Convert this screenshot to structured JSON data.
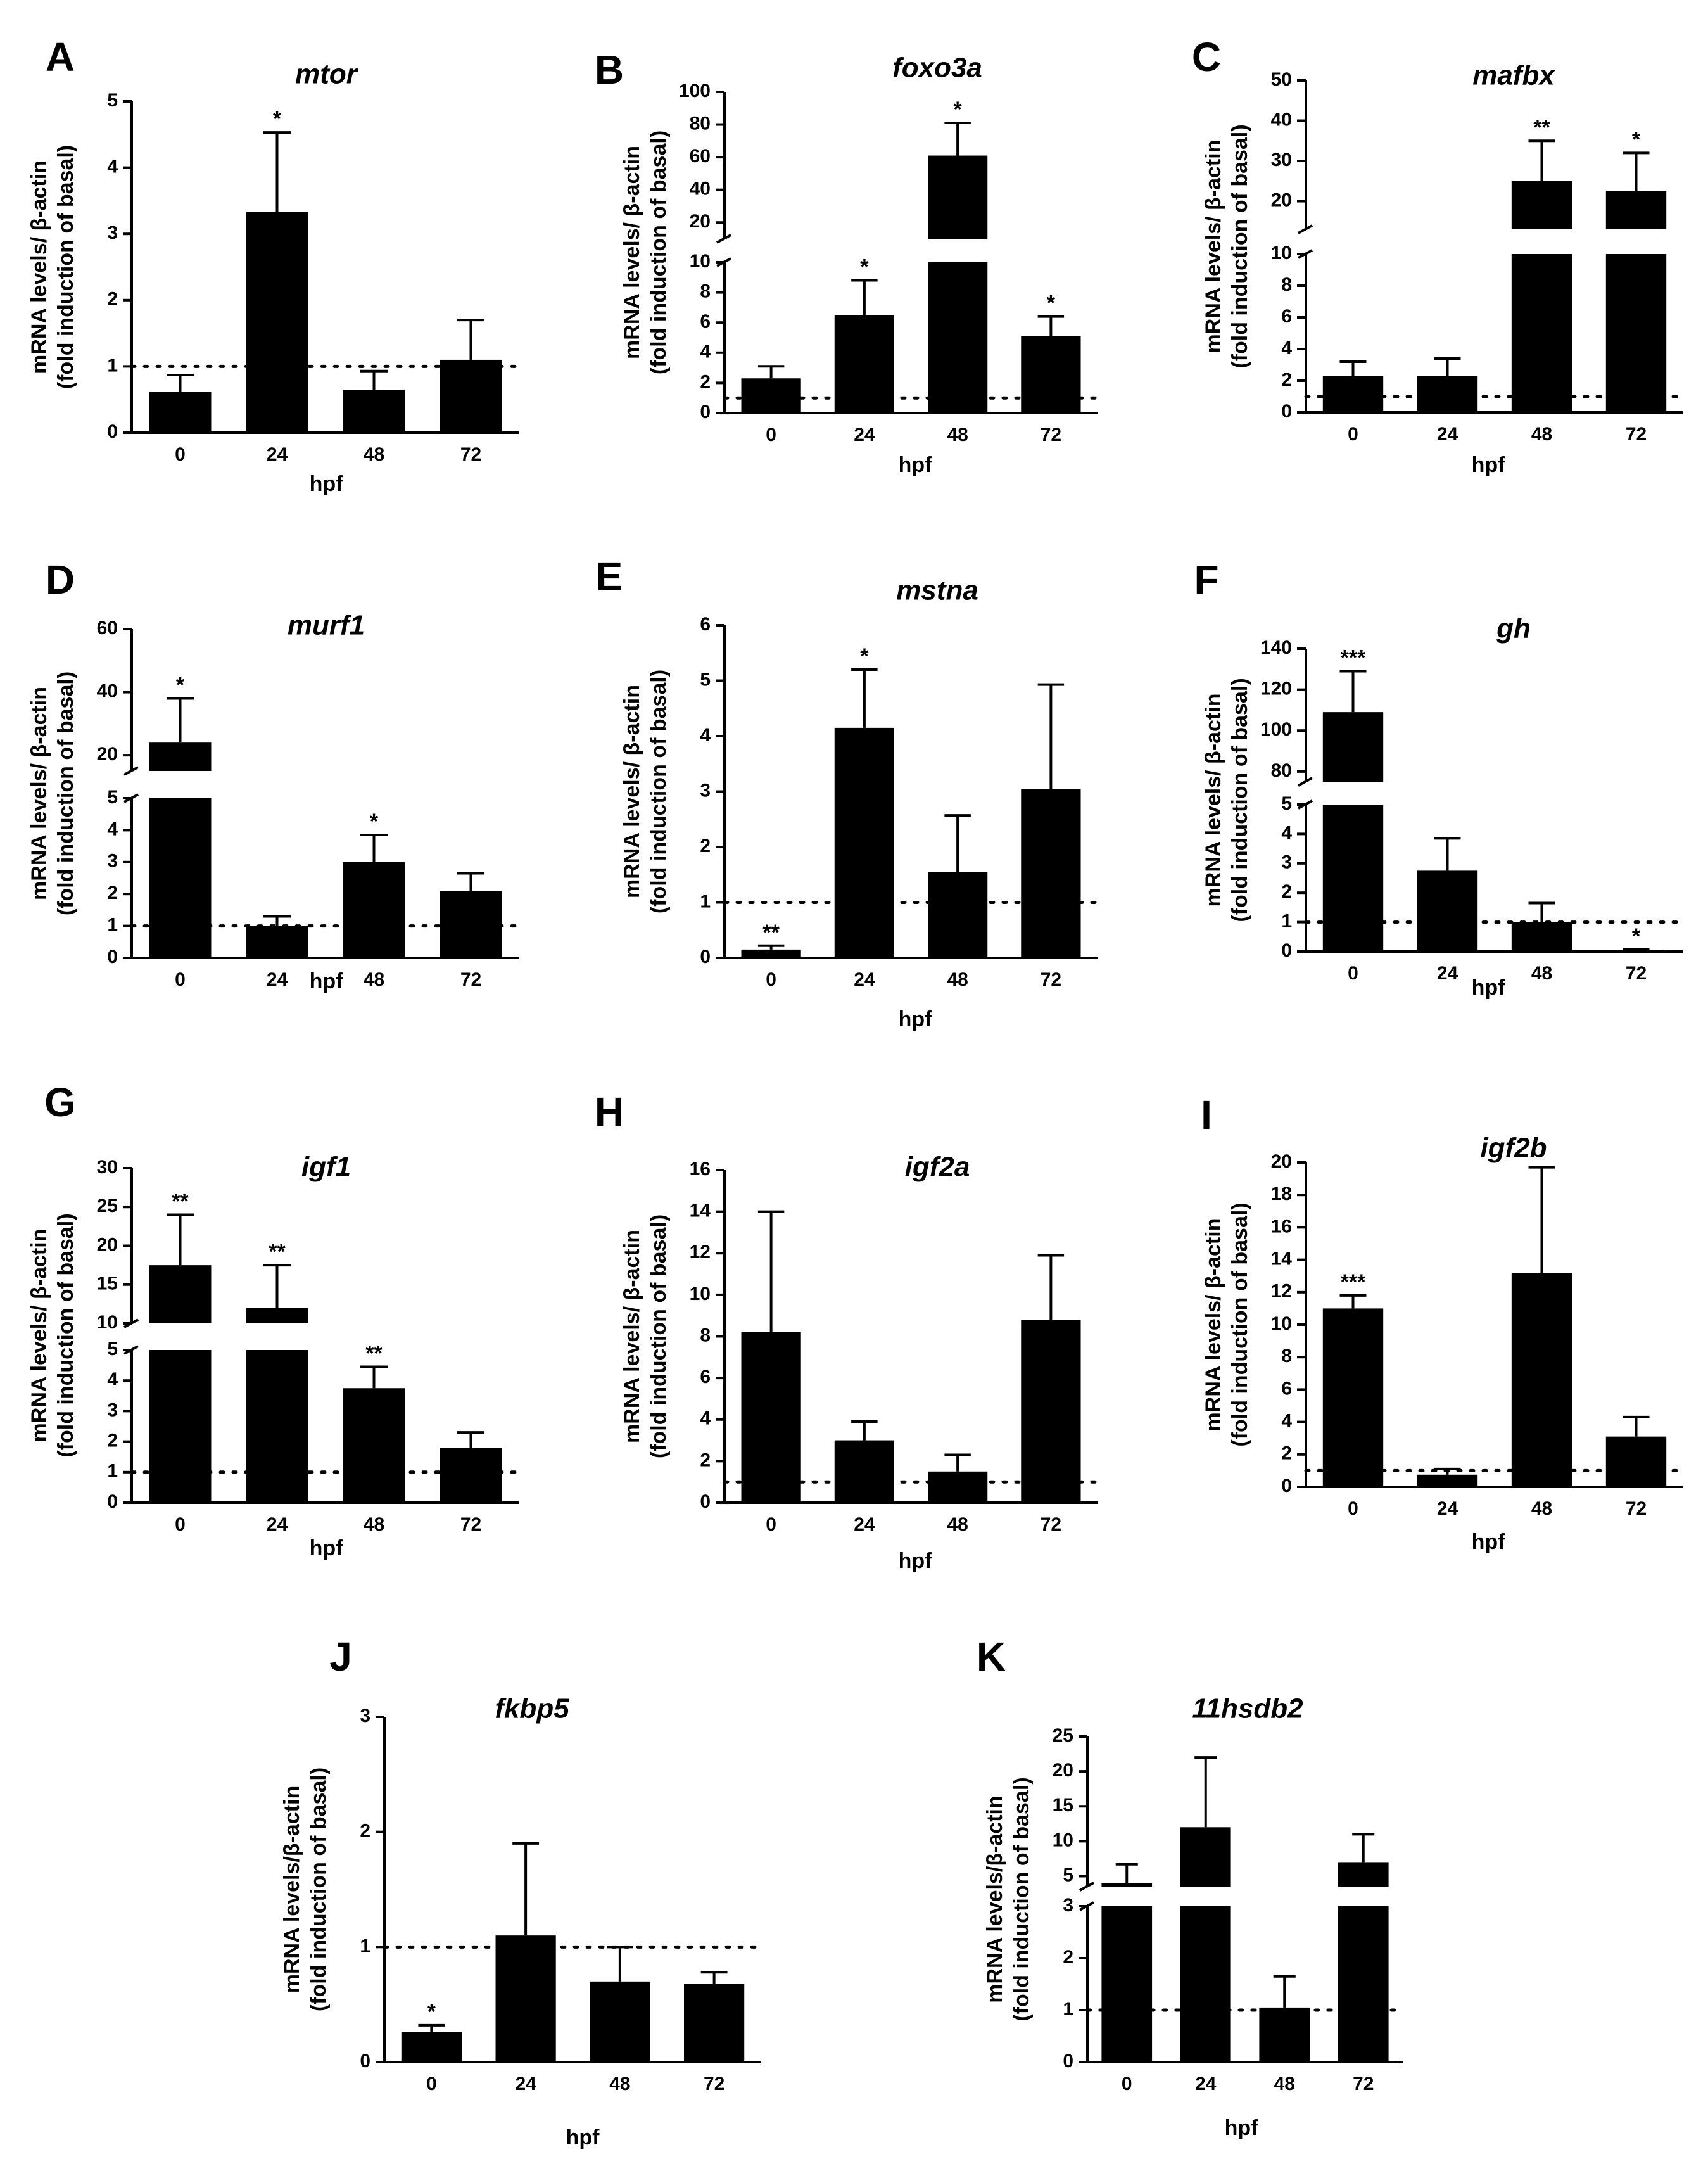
{
  "figure": {
    "panels": [
      {
        "letter": "A",
        "gene": "mtor"
      },
      {
        "letter": "B",
        "gene": "foxo3a"
      },
      {
        "letter": "C",
        "gene": "mafbx"
      },
      {
        "letter": "D",
        "gene": "murf1"
      },
      {
        "letter": "E",
        "gene": "mstna"
      },
      {
        "letter": "F",
        "gene": "gh"
      },
      {
        "letter": "G",
        "gene": "igf1"
      },
      {
        "letter": "H",
        "gene": "igf2a"
      },
      {
        "letter": "I",
        "gene": "igf2b"
      },
      {
        "letter": "J",
        "gene": "fkbp5"
      },
      {
        "letter": "K",
        "gene": "11hsdb2"
      }
    ]
  },
  "chart_data": [
    {
      "panel": "A",
      "type": "bar",
      "title": "mtor",
      "xlabel": "hpf",
      "ylabel_line1": "mRNA levels/ β-actin",
      "ylabel_line2": "(fold induction of basal)",
      "categories": [
        "0",
        "24",
        "48",
        "72"
      ],
      "values": [
        0.62,
        3.33,
        0.65,
        1.1
      ],
      "errors": [
        0.25,
        1.2,
        0.28,
        0.6
      ],
      "significance": [
        "",
        "*",
        "",
        ""
      ],
      "ylim": [
        0,
        5
      ],
      "yticks": [
        0,
        1,
        2,
        3,
        4,
        5
      ],
      "reference_line": 1
    },
    {
      "panel": "B",
      "type": "bar",
      "title": "foxo3a",
      "xlabel": "hpf",
      "ylabel_line1": "mRNA levels/ β-actin",
      "ylabel_line2": "(fold induction of basal)",
      "categories": [
        "0",
        "24",
        "48",
        "72"
      ],
      "values": [
        2.3,
        6.5,
        61,
        5.1
      ],
      "errors": [
        0.8,
        2.3,
        20,
        1.3
      ],
      "significance": [
        "",
        "*",
        "*",
        "*"
      ],
      "ylim": [
        0,
        100
      ],
      "axis_break": {
        "lower": [
          0,
          10
        ],
        "upper": [
          10,
          100
        ]
      },
      "yticks_lower": [
        0,
        2,
        4,
        6,
        8,
        10
      ],
      "yticks_upper": [
        20,
        40,
        60,
        80,
        100
      ],
      "reference_line": 1
    },
    {
      "panel": "C",
      "type": "bar",
      "title": "mafbx",
      "xlabel": "hpf",
      "ylabel_line1": "mRNA levels/ β-actin",
      "ylabel_line2": "(fold induction of basal)",
      "categories": [
        "0",
        "24",
        "48",
        "72"
      ],
      "values": [
        2.3,
        2.3,
        25,
        22.5
      ],
      "errors": [
        0.9,
        1.1,
        10,
        9.5
      ],
      "significance": [
        "",
        "",
        "**",
        "*"
      ],
      "ylim": [
        0,
        50
      ],
      "axis_break": {
        "lower": [
          0,
          10
        ],
        "upper": [
          13,
          50
        ]
      },
      "yticks_lower": [
        0,
        2,
        4,
        6,
        8,
        10
      ],
      "yticks_upper": [
        20,
        30,
        40,
        50
      ],
      "reference_line": 1
    },
    {
      "panel": "D",
      "type": "bar",
      "title": "murf1",
      "xlabel": "hpf",
      "ylabel_line1": "mRNA levels/ β-actin",
      "ylabel_line2": "(fold induction of basal)",
      "categories": [
        "0",
        "24",
        "48",
        "72"
      ],
      "values": [
        24,
        1.0,
        3.0,
        2.1
      ],
      "errors": [
        14,
        0.3,
        0.85,
        0.55
      ],
      "significance": [
        "*",
        "",
        "*",
        ""
      ],
      "ylim": [
        0,
        60
      ],
      "axis_break": {
        "lower": [
          0,
          5
        ],
        "upper": [
          15,
          60
        ]
      },
      "yticks_lower": [
        0,
        1,
        2,
        3,
        4,
        5
      ],
      "yticks_upper": [
        20,
        40,
        60
      ],
      "reference_line": 1
    },
    {
      "panel": "E",
      "type": "bar",
      "title": "mstna",
      "xlabel": "hpf",
      "ylabel_line1": "mRNA levels/ β-actin",
      "ylabel_line2": "(fold induction of basal)",
      "categories": [
        "0",
        "24",
        "48",
        "72"
      ],
      "values": [
        0.15,
        4.15,
        1.55,
        3.05
      ],
      "errors": [
        0.07,
        1.05,
        1.02,
        1.88
      ],
      "significance": [
        "**",
        "*",
        "",
        ""
      ],
      "ylim": [
        0,
        6
      ],
      "yticks": [
        0,
        1,
        2,
        3,
        4,
        5,
        6
      ],
      "reference_line": 1
    },
    {
      "panel": "F",
      "type": "bar",
      "title": "gh",
      "xlabel": "hpf",
      "ylabel_line1": "mRNA levels/ β-actin",
      "ylabel_line2": "(fold induction of basal)",
      "categories": [
        "0",
        "24",
        "48",
        "72"
      ],
      "values": [
        109,
        2.75,
        1.0,
        0.05
      ],
      "errors": [
        20,
        1.1,
        0.65,
        0.02
      ],
      "significance": [
        "***",
        "",
        "",
        "*"
      ],
      "ylim": [
        0,
        140
      ],
      "axis_break": {
        "lower": [
          0,
          5
        ],
        "upper": [
          75,
          140
        ]
      },
      "yticks_lower": [
        0,
        1,
        2,
        3,
        4,
        5
      ],
      "yticks_upper": [
        80,
        100,
        120,
        140
      ],
      "reference_line": 1
    },
    {
      "panel": "G",
      "type": "bar",
      "title": "igf1",
      "xlabel": "hpf",
      "ylabel_line1": "mRNA levels/ β-actin",
      "ylabel_line2": "(fold induction of basal)",
      "categories": [
        "0",
        "24",
        "48",
        "72"
      ],
      "values": [
        17.5,
        12,
        3.75,
        1.8
      ],
      "errors": [
        6.5,
        5.5,
        0.7,
        0.5
      ],
      "significance": [
        "**",
        "**",
        "**",
        ""
      ],
      "ylim": [
        0,
        30
      ],
      "axis_break": {
        "lower": [
          0,
          5
        ],
        "upper": [
          10,
          30
        ]
      },
      "yticks_lower": [
        0,
        1,
        2,
        3,
        4,
        5
      ],
      "yticks_upper": [
        10,
        15,
        20,
        25,
        30
      ],
      "reference_line": 1
    },
    {
      "panel": "H",
      "type": "bar",
      "title": "igf2a",
      "xlabel": "hpf",
      "ylabel_line1": "mRNA levels/ β-actin",
      "ylabel_line2": "(fold induction of basal)",
      "categories": [
        "0",
        "24",
        "48",
        "72"
      ],
      "values": [
        8.2,
        3.0,
        1.5,
        8.8
      ],
      "errors": [
        5.8,
        0.9,
        0.8,
        3.1
      ],
      "significance": [
        "",
        "",
        "",
        ""
      ],
      "ylim": [
        0,
        16
      ],
      "yticks": [
        0,
        2,
        4,
        6,
        8,
        10,
        12,
        14,
        16
      ],
      "reference_line": 1
    },
    {
      "panel": "I",
      "type": "bar",
      "title": "igf2b",
      "xlabel": "hpf",
      "ylabel_line1": "mRNA levels/ β-actin",
      "ylabel_line2": "(fold induction of basal)",
      "categories": [
        "0",
        "24",
        "48",
        "72"
      ],
      "values": [
        11,
        0.75,
        13.2,
        3.1
      ],
      "errors": [
        0.8,
        0.35,
        6.5,
        1.2
      ],
      "significance": [
        "***",
        "",
        "",
        ""
      ],
      "ylim": [
        0,
        20
      ],
      "yticks": [
        0,
        2,
        4,
        6,
        8,
        10,
        12,
        14,
        16,
        18,
        20
      ],
      "reference_line": 1
    },
    {
      "panel": "J",
      "type": "bar",
      "title": "fkbp5",
      "xlabel": "hpf",
      "ylabel_line1": "mRNA levels/β-actin",
      "ylabel_line2": "(fold induction of basal)",
      "categories": [
        "0",
        "24",
        "48",
        "72"
      ],
      "values": [
        0.26,
        1.1,
        0.7,
        0.68
      ],
      "errors": [
        0.06,
        0.8,
        0.3,
        0.1
      ],
      "significance": [
        "*",
        "",
        "",
        ""
      ],
      "ylim": [
        0,
        3
      ],
      "yticks": [
        0,
        1,
        2,
        3
      ],
      "reference_line": 1
    },
    {
      "panel": "K",
      "type": "bar",
      "title": "11hsdb2",
      "xlabel": "hpf",
      "ylabel_line1": "mRNA levels/β-actin",
      "ylabel_line2": "(fold induction of basal)",
      "categories": [
        "0",
        "24",
        "48",
        "72"
      ],
      "values": [
        4.0,
        12,
        1.05,
        7.0
      ],
      "errors": [
        2.7,
        10,
        0.6,
        4.0
      ],
      "significance": [
        "",
        "",
        "",
        ""
      ],
      "ylim": [
        0,
        25
      ],
      "axis_break": {
        "lower": [
          0,
          3
        ],
        "upper": [
          3.5,
          25
        ]
      },
      "yticks_lower": [
        0,
        1,
        2,
        3
      ],
      "yticks_upper": [
        5,
        10,
        15,
        20,
        25
      ],
      "reference_line": 1
    }
  ]
}
